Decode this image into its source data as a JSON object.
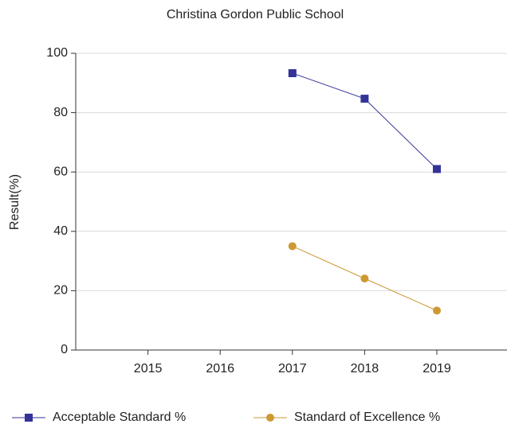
{
  "chart_data": {
    "type": "line",
    "title": "Christina Gordon Public School",
    "y_label": "Result(%)",
    "categories": [
      "2015",
      "2016",
      "2017",
      "2018",
      "2019"
    ],
    "series": [
      {
        "name": "Acceptable Standard %",
        "color": "#333399",
        "marker": "square",
        "values": [
          null,
          null,
          93.3,
          84.7,
          61.0
        ]
      },
      {
        "name": "Standard of Excellence %",
        "color": "#cc9933",
        "marker": "circle",
        "values": [
          null,
          null,
          35.0,
          24.1,
          13.3
        ]
      }
    ],
    "ylim": [
      0,
      100
    ],
    "yticks": [
      0,
      20,
      40,
      60,
      80,
      100
    ],
    "grid": true,
    "legend": "bottom"
  }
}
